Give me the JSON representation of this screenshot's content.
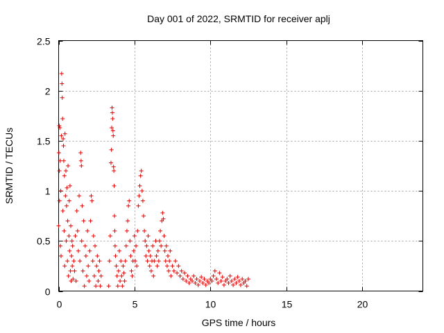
{
  "chart_data": {
    "type": "scatter",
    "title": "Day 001 of 2022, SRMTID for receiver aplj",
    "xlabel": "GPS time / hours",
    "ylabel": "SRMTID / TECUs",
    "xlim": [
      0,
      24
    ],
    "ylim": [
      0,
      2.5
    ],
    "xticks": [
      0,
      5,
      10,
      15,
      20
    ],
    "xtick_labels": [
      "0",
      "5",
      "10",
      "15",
      "20"
    ],
    "yticks": [
      0,
      0.5,
      1,
      1.5,
      2,
      2.5
    ],
    "ytick_labels": [
      "0",
      "0.5",
      "1",
      "1.5",
      "2",
      "2.5"
    ],
    "grid": true,
    "marker": "+",
    "series": [
      {
        "name": "SRMTID",
        "color": "#e00000",
        "points": [
          [
            0.0,
            0.65
          ],
          [
            0.02,
            1.38
          ],
          [
            0.04,
            1.65
          ],
          [
            0.05,
            1.2
          ],
          [
            0.06,
            0.9
          ],
          [
            0.08,
            1.63
          ],
          [
            0.1,
            1.3
          ],
          [
            0.12,
            0.45
          ],
          [
            0.14,
            1.0
          ],
          [
            0.16,
            0.35
          ],
          [
            0.18,
            1.55
          ],
          [
            0.2,
            2.17
          ],
          [
            0.22,
            2.07
          ],
          [
            0.24,
            1.93
          ],
          [
            0.26,
            1.72
          ],
          [
            0.28,
            0.8
          ],
          [
            0.3,
            1.52
          ],
          [
            0.32,
            1.45
          ],
          [
            0.34,
            1.3
          ],
          [
            0.36,
            0.6
          ],
          [
            0.38,
            1.15
          ],
          [
            0.4,
            0.25
          ],
          [
            0.42,
            1.57
          ],
          [
            0.45,
            0.95
          ],
          [
            0.48,
            1.2
          ],
          [
            0.5,
            0.5
          ],
          [
            0.52,
            0.85
          ],
          [
            0.55,
            1.03
          ],
          [
            0.58,
            0.3
          ],
          [
            0.6,
            0.7
          ],
          [
            0.62,
            1.25
          ],
          [
            0.65,
            0.15
          ],
          [
            0.68,
            0.55
          ],
          [
            0.7,
            0.9
          ],
          [
            0.72,
            0.4
          ],
          [
            0.75,
            1.05
          ],
          [
            0.78,
            0.2
          ],
          [
            0.8,
            0.65
          ],
          [
            0.82,
            0.1
          ],
          [
            0.85,
            0.35
          ],
          [
            0.88,
            0.5
          ],
          [
            0.9,
            0.25
          ],
          [
            0.92,
            0.45
          ],
          [
            0.95,
            0.12
          ],
          [
            1.0,
            0.3
          ],
          [
            1.05,
            0.2
          ],
          [
            1.1,
            0.55
          ],
          [
            1.15,
            0.1
          ],
          [
            1.2,
            0.8
          ],
          [
            1.25,
            0.6
          ],
          [
            1.3,
            0.4
          ],
          [
            1.35,
            0.95
          ],
          [
            1.4,
            0.3
          ],
          [
            1.45,
            1.38
          ],
          [
            1.48,
            1.3
          ],
          [
            1.5,
            1.25
          ],
          [
            1.52,
            0.5
          ],
          [
            1.55,
            0.85
          ],
          [
            1.6,
            0.2
          ],
          [
            1.65,
            0.7
          ],
          [
            1.7,
            0.05
          ],
          [
            1.75,
            0.45
          ],
          [
            1.8,
            0.35
          ],
          [
            1.85,
            0.15
          ],
          [
            1.9,
            0.6
          ],
          [
            1.95,
            0.25
          ],
          [
            2.0,
            0.1
          ],
          [
            2.05,
            0.4
          ],
          [
            2.1,
            0.7
          ],
          [
            2.15,
            0.95
          ],
          [
            2.2,
            0.9
          ],
          [
            2.25,
            0.3
          ],
          [
            2.3,
            0.55
          ],
          [
            2.35,
            0.15
          ],
          [
            2.4,
            0.45
          ],
          [
            2.45,
            0.05
          ],
          [
            2.5,
            0.25
          ],
          [
            2.55,
            0.35
          ],
          [
            2.6,
            0.1
          ],
          [
            2.65,
            0.2
          ],
          [
            2.7,
            0.3
          ],
          [
            2.75,
            0.05
          ],
          [
            2.8,
            0.15
          ],
          [
            3.3,
            0.05
          ],
          [
            3.35,
            0.3
          ],
          [
            3.4,
            0.55
          ],
          [
            3.45,
            1.28
          ],
          [
            3.48,
            1.41
          ],
          [
            3.5,
            1.63
          ],
          [
            3.52,
            1.83
          ],
          [
            3.54,
            1.78
          ],
          [
            3.56,
            1.72
          ],
          [
            3.58,
            1.6
          ],
          [
            3.6,
            1.55
          ],
          [
            3.62,
            1.24
          ],
          [
            3.64,
            1.2
          ],
          [
            3.66,
            1.05
          ],
          [
            3.68,
            0.75
          ],
          [
            3.7,
            0.6
          ],
          [
            3.72,
            0.45
          ],
          [
            3.75,
            0.35
          ],
          [
            3.8,
            0.25
          ],
          [
            3.85,
            0.15
          ],
          [
            3.9,
            0.05
          ],
          [
            3.95,
            0.2
          ],
          [
            4.0,
            0.4
          ],
          [
            4.05,
            0.1
          ],
          [
            4.1,
            0.3
          ],
          [
            4.15,
            0.15
          ],
          [
            4.2,
            0.05
          ],
          [
            4.25,
            0.25
          ],
          [
            4.3,
            0.18
          ],
          [
            4.35,
            0.1
          ],
          [
            4.4,
            0.3
          ],
          [
            4.45,
            0.45
          ],
          [
            4.5,
            0.6
          ],
          [
            4.55,
            0.7
          ],
          [
            4.6,
            0.85
          ],
          [
            4.65,
            0.9
          ],
          [
            4.7,
            0.5
          ],
          [
            4.75,
            0.35
          ],
          [
            4.8,
            0.2
          ],
          [
            4.85,
            0.15
          ],
          [
            4.9,
            0.3
          ],
          [
            4.95,
            0.4
          ],
          [
            5.0,
            0.55
          ],
          [
            5.05,
            0.3
          ],
          [
            5.1,
            0.45
          ],
          [
            5.15,
            0.25
          ],
          [
            5.2,
            0.6
          ],
          [
            5.25,
            0.85
          ],
          [
            5.3,
            0.95
          ],
          [
            5.35,
            1.05
          ],
          [
            5.4,
            1.15
          ],
          [
            5.45,
            1.2
          ],
          [
            5.5,
            1.0
          ],
          [
            5.55,
            0.9
          ],
          [
            5.6,
            0.75
          ],
          [
            5.65,
            0.6
          ],
          [
            5.7,
            0.5
          ],
          [
            5.75,
            0.35
          ],
          [
            5.8,
            0.45
          ],
          [
            5.85,
            0.3
          ],
          [
            5.9,
            0.55
          ],
          [
            5.95,
            0.4
          ],
          [
            6.0,
            0.25
          ],
          [
            6.05,
            0.35
          ],
          [
            6.1,
            0.2
          ],
          [
            6.15,
            0.3
          ],
          [
            6.2,
            0.45
          ],
          [
            6.25,
            0.15
          ],
          [
            6.3,
            0.3
          ],
          [
            6.4,
            0.5
          ],
          [
            6.45,
            0.35
          ],
          [
            6.5,
            0.25
          ],
          [
            6.55,
            0.4
          ],
          [
            6.6,
            0.3
          ],
          [
            6.65,
            0.5
          ],
          [
            6.7,
            0.6
          ],
          [
            6.75,
            0.45
          ],
          [
            6.8,
            0.7
          ],
          [
            6.85,
            0.78
          ],
          [
            6.9,
            0.72
          ],
          [
            6.95,
            0.55
          ],
          [
            7.0,
            0.4
          ],
          [
            7.05,
            0.3
          ],
          [
            7.1,
            0.45
          ],
          [
            7.15,
            0.25
          ],
          [
            7.2,
            0.35
          ],
          [
            7.25,
            0.2
          ],
          [
            7.3,
            0.3
          ],
          [
            7.35,
            0.4
          ],
          [
            7.4,
            0.15
          ],
          [
            7.5,
            0.25
          ],
          [
            7.6,
            0.2
          ],
          [
            7.7,
            0.3
          ],
          [
            7.8,
            0.18
          ],
          [
            7.9,
            0.25
          ],
          [
            8.0,
            0.15
          ],
          [
            8.1,
            0.2
          ],
          [
            8.2,
            0.12
          ],
          [
            8.3,
            0.18
          ],
          [
            8.4,
            0.1
          ],
          [
            8.5,
            0.15
          ],
          [
            8.6,
            0.08
          ],
          [
            8.7,
            0.12
          ],
          [
            8.8,
            0.1
          ],
          [
            8.9,
            0.15
          ],
          [
            9.0,
            0.08
          ],
          [
            9.1,
            0.12
          ],
          [
            9.2,
            0.06
          ],
          [
            9.3,
            0.1
          ],
          [
            9.4,
            0.14
          ],
          [
            9.5,
            0.08
          ],
          [
            9.6,
            0.12
          ],
          [
            9.7,
            0.06
          ],
          [
            9.8,
            0.1
          ],
          [
            9.9,
            0.08
          ],
          [
            10.0,
            0.12
          ],
          [
            10.1,
            0.1
          ],
          [
            10.2,
            0.15
          ],
          [
            10.3,
            0.2
          ],
          [
            10.4,
            0.12
          ],
          [
            10.5,
            0.08
          ],
          [
            10.6,
            0.18
          ],
          [
            10.7,
            0.1
          ],
          [
            10.8,
            0.14
          ],
          [
            10.9,
            0.06
          ],
          [
            11.0,
            0.1
          ],
          [
            11.1,
            0.12
          ],
          [
            11.2,
            0.08
          ],
          [
            11.3,
            0.15
          ],
          [
            11.4,
            0.1
          ],
          [
            11.5,
            0.06
          ],
          [
            11.6,
            0.12
          ],
          [
            11.7,
            0.08
          ],
          [
            11.8,
            0.14
          ],
          [
            11.9,
            0.1
          ],
          [
            12.0,
            0.06
          ],
          [
            12.1,
            0.12
          ],
          [
            12.2,
            0.08
          ],
          [
            12.3,
            0.1
          ],
          [
            12.4,
            0.05
          ],
          [
            12.5,
            0.12
          ]
        ]
      }
    ]
  }
}
